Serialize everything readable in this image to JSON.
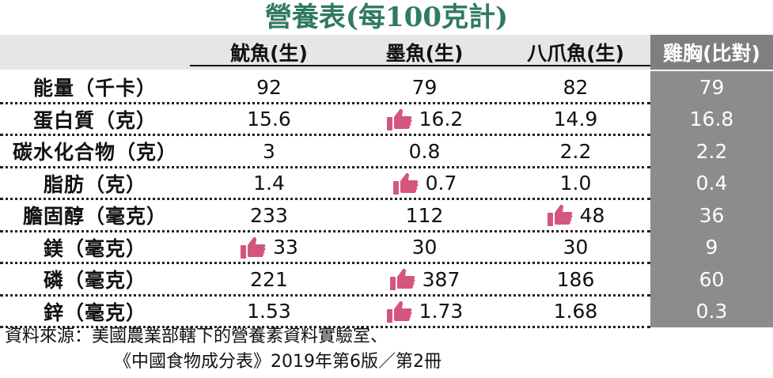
{
  "title": "營養表(每100克計)",
  "columns": [
    "魷魚(生)",
    "墨魚(生)",
    "八爪魚(生)",
    "雞胸(比對)"
  ],
  "rows": [
    {
      "label": "能量（千卡）",
      "values": [
        "92",
        "79",
        "82",
        "79"
      ],
      "thumb": [
        false,
        false,
        false
      ]
    },
    {
      "label": "蛋白質（克）",
      "values": [
        "15.6",
        "16.2",
        "14.9",
        "16.8"
      ],
      "thumb": [
        false,
        true,
        false
      ]
    },
    {
      "label": "碳水化合物（克）",
      "values": [
        "3",
        "0.8",
        "2.2",
        "2.2"
      ],
      "thumb": [
        false,
        false,
        false
      ]
    },
    {
      "label": "脂肪（克）",
      "values": [
        "1.4",
        "0.7",
        "1.0",
        "0.4"
      ],
      "thumb": [
        false,
        true,
        false
      ]
    },
    {
      "label": "膽固醇（毫克）",
      "values": [
        "233",
        "112",
        "48",
        "36"
      ],
      "thumb": [
        false,
        false,
        true
      ]
    },
    {
      "label": "鎂（毫克）",
      "values": [
        "33",
        "30",
        "30",
        "9"
      ],
      "thumb": [
        true,
        false,
        false
      ]
    },
    {
      "label": "磷（毫克）",
      "values": [
        "221",
        "387",
        "186",
        "60"
      ],
      "thumb": [
        false,
        true,
        false
      ]
    },
    {
      "label": "鋅（毫克）",
      "values": [
        "1.53",
        "1.73",
        "1.68",
        "0.3"
      ],
      "thumb": [
        false,
        true,
        false
      ]
    }
  ],
  "source": {
    "line1": "資料來源：美國農業部轄下的營養素資料實驗室、",
    "line2": "《中國食物成分表》2019年第6版／第2冊"
  },
  "colors": {
    "title": "#2f7a63",
    "thumb": "#d4567d",
    "compare_column": "#8c8c8c"
  },
  "icons": {
    "highlight": "thumbs-up-icon"
  }
}
